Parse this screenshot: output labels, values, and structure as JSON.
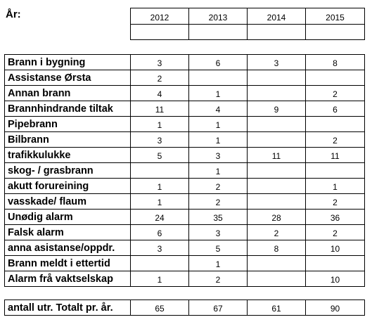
{
  "header": {
    "label": "År:",
    "years": [
      "2012",
      "2013",
      "2014",
      "2015"
    ]
  },
  "rows": [
    {
      "label": "Brann i bygning",
      "values": [
        "3",
        "6",
        "3",
        "8"
      ]
    },
    {
      "label": "Assistanse Ørsta",
      "values": [
        "2",
        "",
        "",
        ""
      ]
    },
    {
      "label": "Annan brann",
      "values": [
        "4",
        "1",
        "",
        "2"
      ]
    },
    {
      "label": "Brannhindrande tiltak",
      "values": [
        "11",
        "4",
        "9",
        "6"
      ]
    },
    {
      "label": "Pipebrann",
      "values": [
        "1",
        "1",
        "",
        ""
      ]
    },
    {
      "label": "Bilbrann",
      "values": [
        "3",
        "1",
        "",
        "2"
      ]
    },
    {
      "label": "trafikkulukke",
      "values": [
        "5",
        "3",
        "11",
        "11"
      ]
    },
    {
      "label": "skog- / grasbrann",
      "values": [
        "",
        "1",
        "",
        ""
      ]
    },
    {
      "label": "akutt forureining",
      "values": [
        "1",
        "2",
        "",
        "1"
      ]
    },
    {
      "label": "vasskade/ flaum",
      "values": [
        "1",
        "2",
        "",
        "2"
      ]
    },
    {
      "label": "Unødig alarm",
      "values": [
        "24",
        "35",
        "28",
        "36"
      ]
    },
    {
      "label": "Falsk alarm",
      "values": [
        "6",
        "3",
        "2",
        "2"
      ]
    },
    {
      "label": "anna asistanse/oppdr.",
      "values": [
        "3",
        "5",
        "8",
        "10"
      ]
    },
    {
      "label": "Brann meldt i ettertid",
      "values": [
        "",
        "1",
        "",
        ""
      ]
    },
    {
      "label": "Alarm frå vaktselskap",
      "values": [
        "1",
        "2",
        "",
        "10"
      ]
    }
  ],
  "total": {
    "label": "antall utr. Totalt pr. år.",
    "values": [
      "65",
      "67",
      "61",
      "90"
    ]
  }
}
